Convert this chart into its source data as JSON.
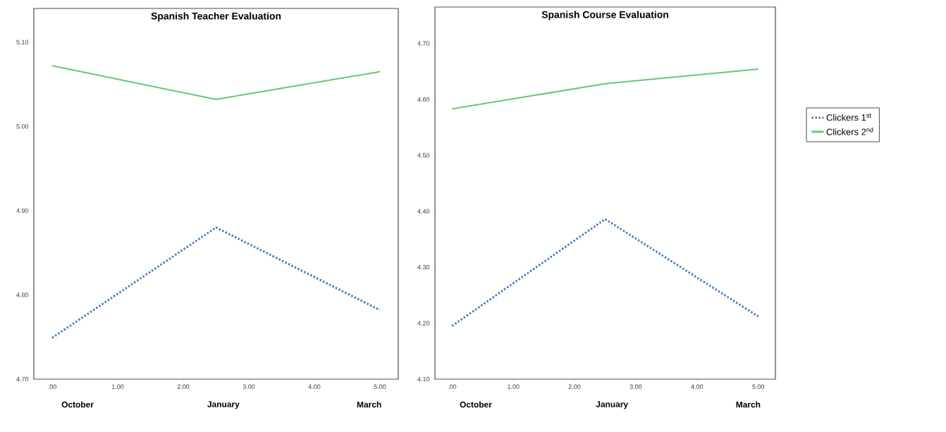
{
  "chart_data": [
    {
      "type": "line",
      "title": "Spanish Teacher Evaluation",
      "x": [
        0,
        2.5,
        5
      ],
      "series": [
        {
          "color": "#4a7ebb",
          "line_style": "dotted",
          "values": [
            4.749,
            4.88,
            4.782
          ]
        },
        {
          "color": "#66c775",
          "values": [
            5.072,
            5.032,
            5.065
          ]
        }
      ],
      "xlim": [
        -0.28,
        5.28
      ],
      "ylim": [
        4.7,
        5.14
      ],
      "xticks": [
        {
          "value": 0,
          "label": ".00"
        },
        {
          "value": 1,
          "label": "1.00"
        },
        {
          "value": 2,
          "label": "2.00"
        },
        {
          "value": 3,
          "label": "3.00"
        },
        {
          "value": 4,
          "label": "4.00"
        },
        {
          "value": 5,
          "label": "5.00"
        }
      ],
      "yticks": [
        {
          "value": 4.7,
          "label": "4.70"
        },
        {
          "value": 4.8,
          "label": "4.80"
        },
        {
          "value": 4.9,
          "label": "4.90"
        },
        {
          "value": 5.0,
          "label": "5.00"
        },
        {
          "value": 5.1,
          "label": "5.10"
        }
      ],
      "annotations": [
        "October",
        "January",
        "March"
      ]
    },
    {
      "type": "line",
      "title": "Spanish Course Evaluation",
      "x": [
        0,
        2.5,
        5
      ],
      "series": [
        {
          "name": "Clickers 1$^{st}$",
          "color": "#4a7ebb",
          "line_style": "dotted",
          "values": [
            4.195,
            4.386,
            4.212
          ]
        },
        {
          "name": "Clickers 2$^{nd}$",
          "color": "#66c775",
          "values": [
            4.583,
            4.628,
            4.654
          ]
        }
      ],
      "xlim": [
        -0.28,
        5.28
      ],
      "ylim": [
        4.1,
        4.765
      ],
      "xticks": [
        {
          "value": 0,
          "label": ".00"
        },
        {
          "value": 1,
          "label": "1.00"
        },
        {
          "value": 2,
          "label": "2.00"
        },
        {
          "value": 3,
          "label": "3.00"
        },
        {
          "value": 4,
          "label": "4.00"
        },
        {
          "value": 5,
          "label": "5.00"
        }
      ],
      "yticks": [
        {
          "value": 4.1,
          "label": "4.10"
        },
        {
          "value": 4.2,
          "label": "4.20"
        },
        {
          "value": 4.3,
          "label": "4.30"
        },
        {
          "value": 4.4,
          "label": "4.40"
        },
        {
          "value": 4.5,
          "label": "4.50"
        },
        {
          "value": 4.6,
          "label": "4.60"
        },
        {
          "value": 4.7,
          "label": "4.70"
        }
      ],
      "annotations": [
        "October",
        "January",
        "March"
      ],
      "legend": "right"
    }
  ]
}
